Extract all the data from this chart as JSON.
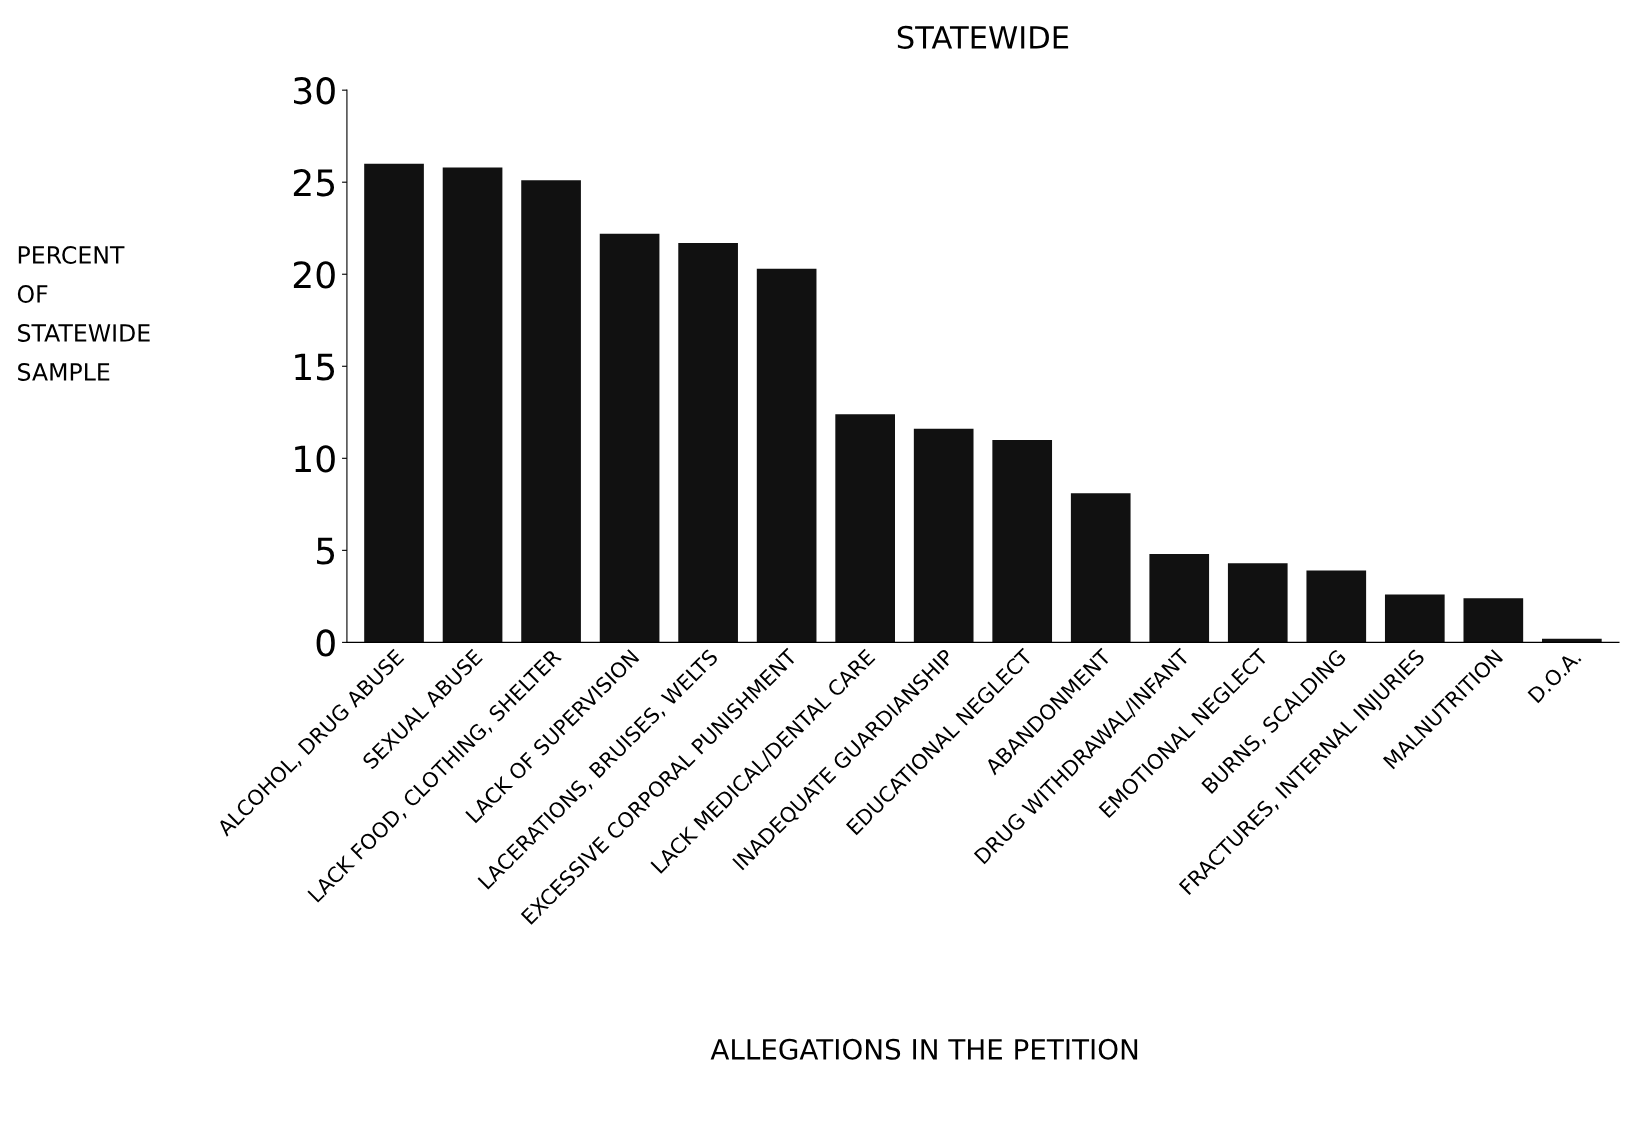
{
  "chart_data": {
    "type": "bar",
    "title": "STATEWIDE",
    "xlabel": "ALLEGATIONS IN THE PETITION",
    "ylabel": "PERCENT\nOF\nSTATEWIDE\nSAMPLE",
    "categories": [
      "ALCOHOL, DRUG ABUSE",
      "SEXUAL ABUSE",
      "LACK FOOD, CLOTHING, SHELTER",
      "LACK OF SUPERVISION",
      "LACERATIONS, BRUISES, WELTS",
      "EXCESSIVE CORPORAL PUNISHMENT",
      "LACK MEDICAL/DENTAL CARE",
      "INADEQUATE GUARDIANSHIP",
      "EDUCATIONAL NEGLECT",
      "ABANDONMENT",
      "DRUG WITHDRAWAL/INFANT",
      "EMOTIONAL NEGLECT",
      "BURNS, SCALDING",
      "FRACTURES, INTERNAL INJURIES",
      "MALNUTRITION",
      "D.O.A."
    ],
    "values": [
      26.0,
      25.8,
      25.1,
      22.2,
      21.7,
      20.3,
      12.4,
      11.6,
      11.0,
      8.1,
      4.8,
      4.3,
      3.9,
      2.6,
      2.4,
      0.2
    ],
    "color": "#111111",
    "ylim": [
      0,
      30
    ],
    "yticks": [
      0,
      5,
      10,
      15,
      20,
      25,
      30
    ],
    "grid": false
  }
}
